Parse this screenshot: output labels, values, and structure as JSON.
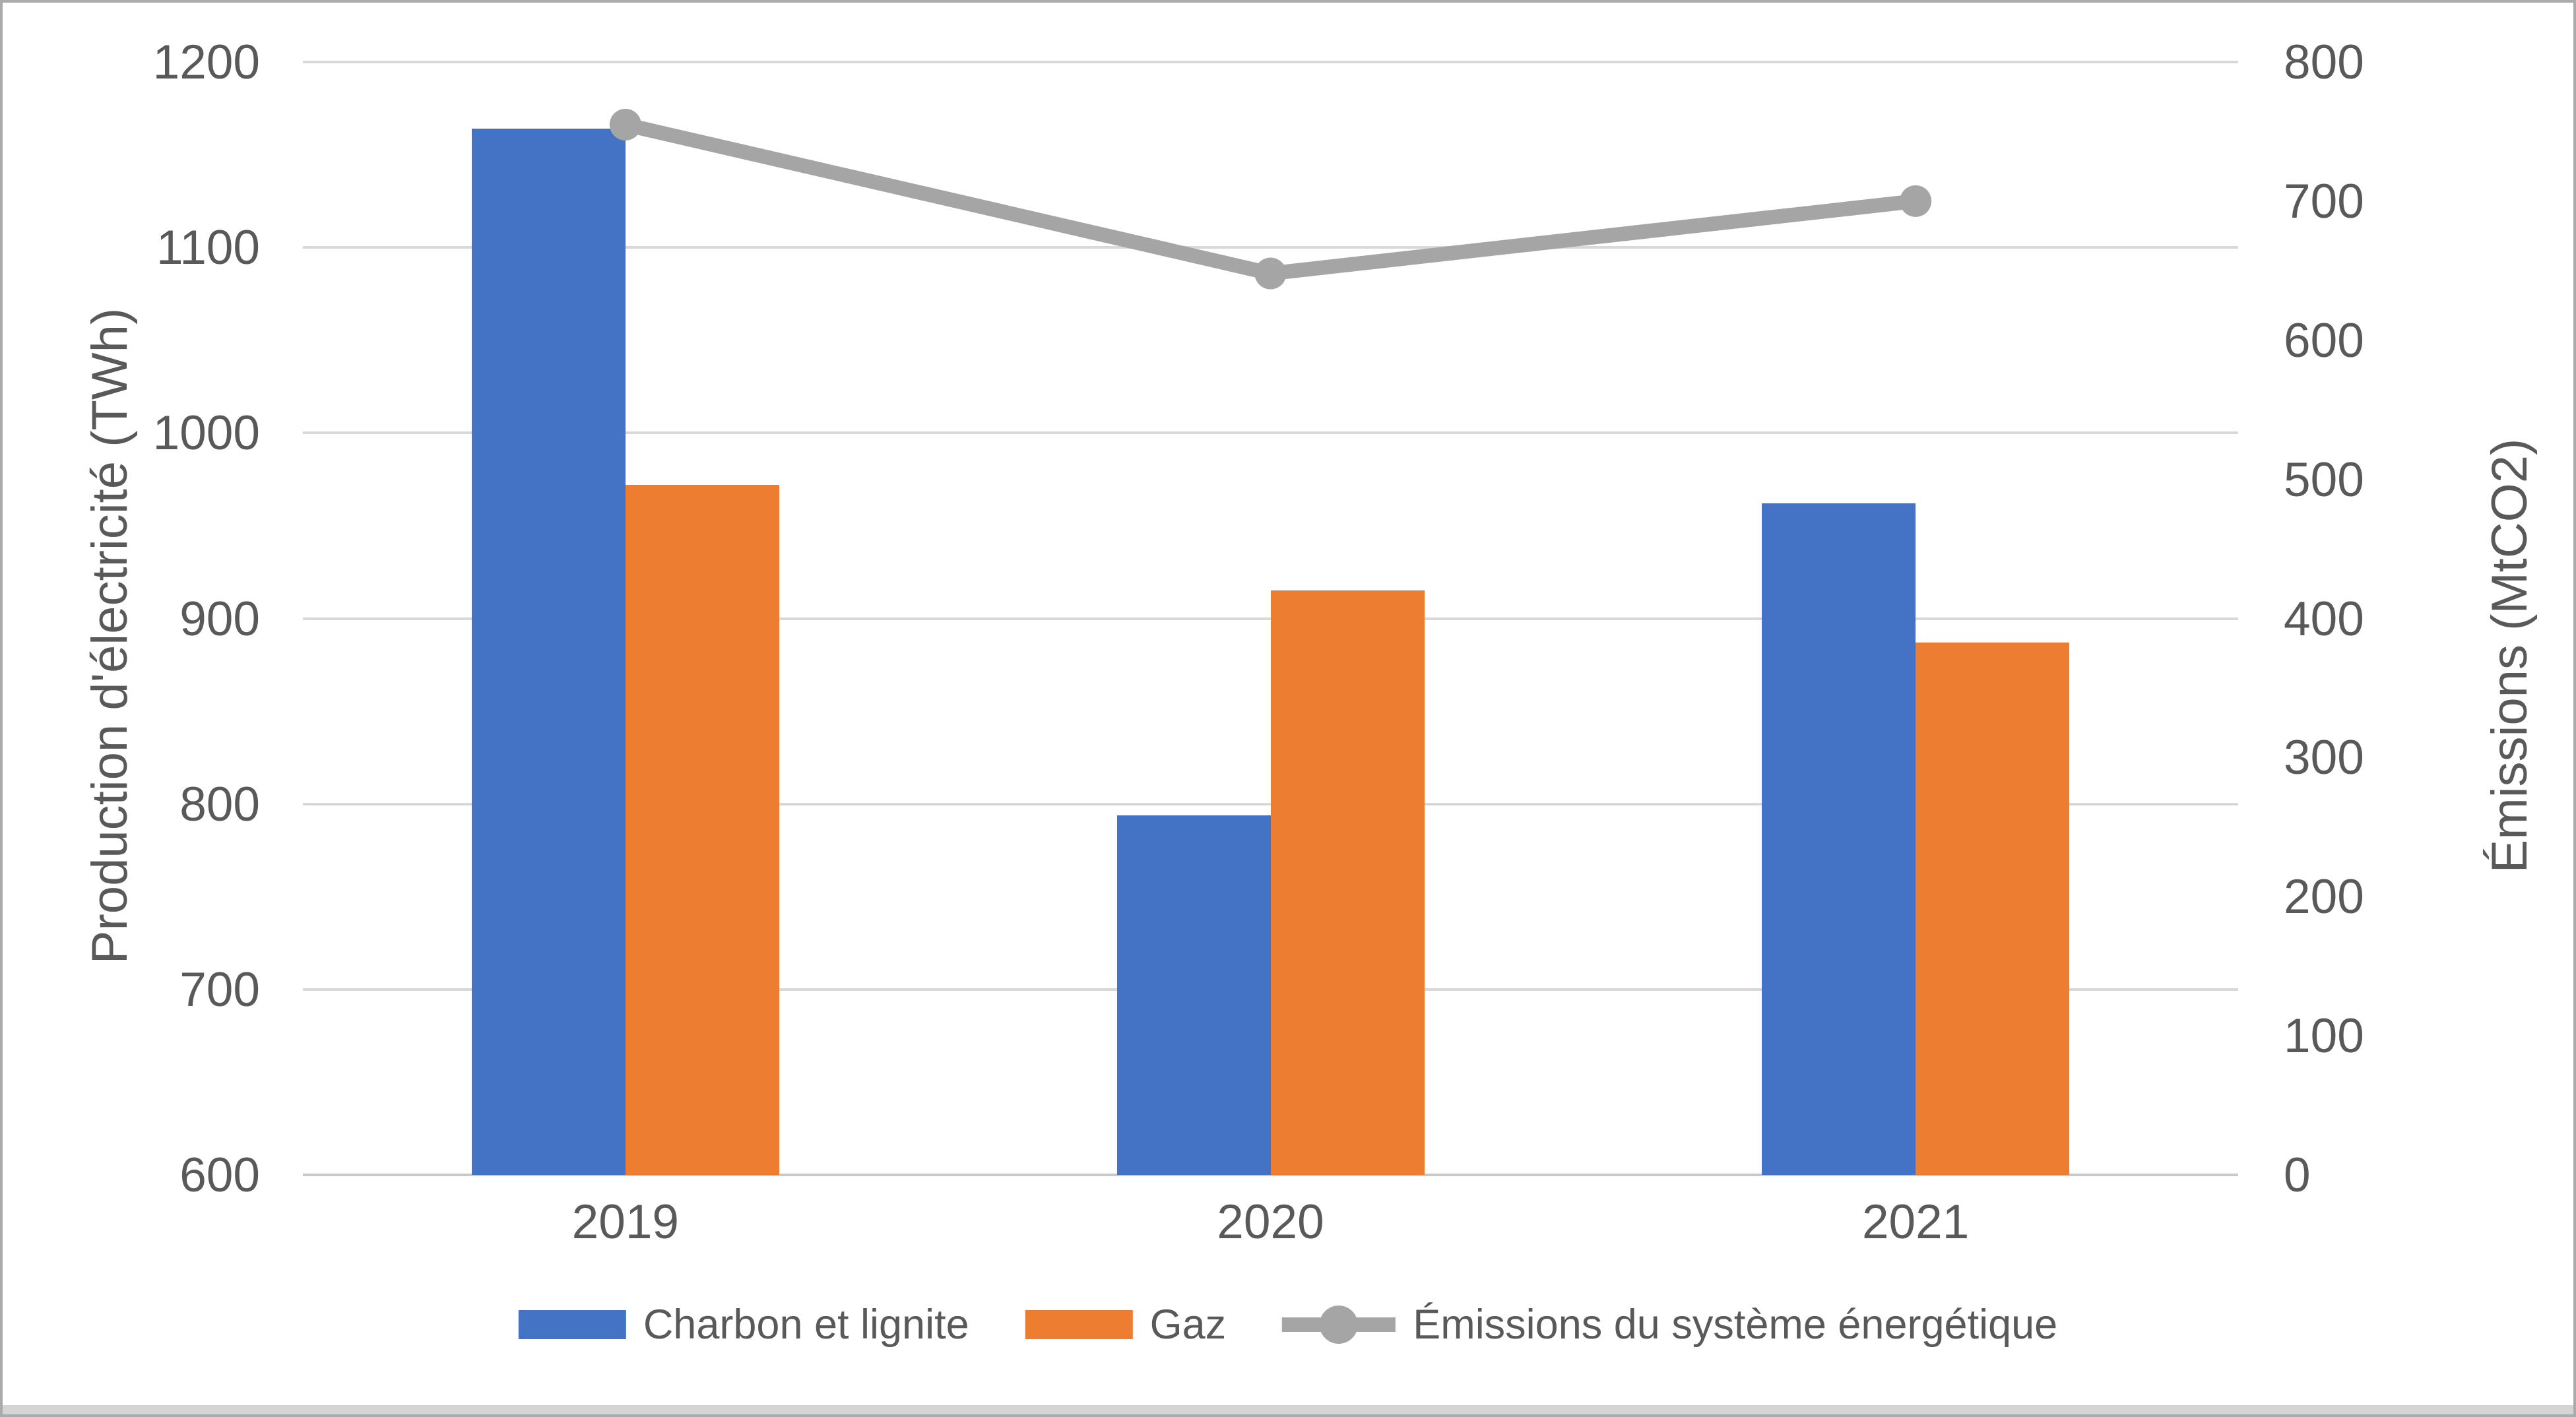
{
  "window": {
    "background": "#FFFFFF",
    "border_color": "#ABABAB"
  },
  "chart_data": {
    "type": "combo-bar-line",
    "categories": [
      "2019",
      "2020",
      "2021"
    ],
    "series": [
      {
        "name": "Charbon et lignite",
        "type": "bar",
        "axis": "left",
        "color": "#4472C4",
        "values": [
          1164,
          794,
          962
        ]
      },
      {
        "name": "Gaz",
        "type": "bar",
        "axis": "left",
        "color": "#ED7D31",
        "values": [
          972,
          915,
          887
        ]
      },
      {
        "name": "Émissions du système énergétique",
        "type": "line",
        "axis": "right",
        "color": "#A5A5A5",
        "values": [
          755,
          648,
          700
        ]
      }
    ],
    "left_axis": {
      "label": "Production d'électricité (TWh)",
      "min": 600,
      "max": 1200,
      "step": 100,
      "ticks": [
        "1200",
        "1100",
        "1000",
        "900",
        "800",
        "700",
        "600"
      ]
    },
    "right_axis": {
      "label": "Émissions (MtCO2)",
      "min": 0,
      "max": 800,
      "step": 100,
      "ticks": [
        "800",
        "700",
        "600",
        "500",
        "400",
        "300",
        "200",
        "100",
        "0"
      ]
    },
    "grid": true,
    "legend_position": "bottom",
    "gridline_color": "#D9D9D9",
    "axis_line_color": "#C9C9C9",
    "text_color": "#595959"
  }
}
